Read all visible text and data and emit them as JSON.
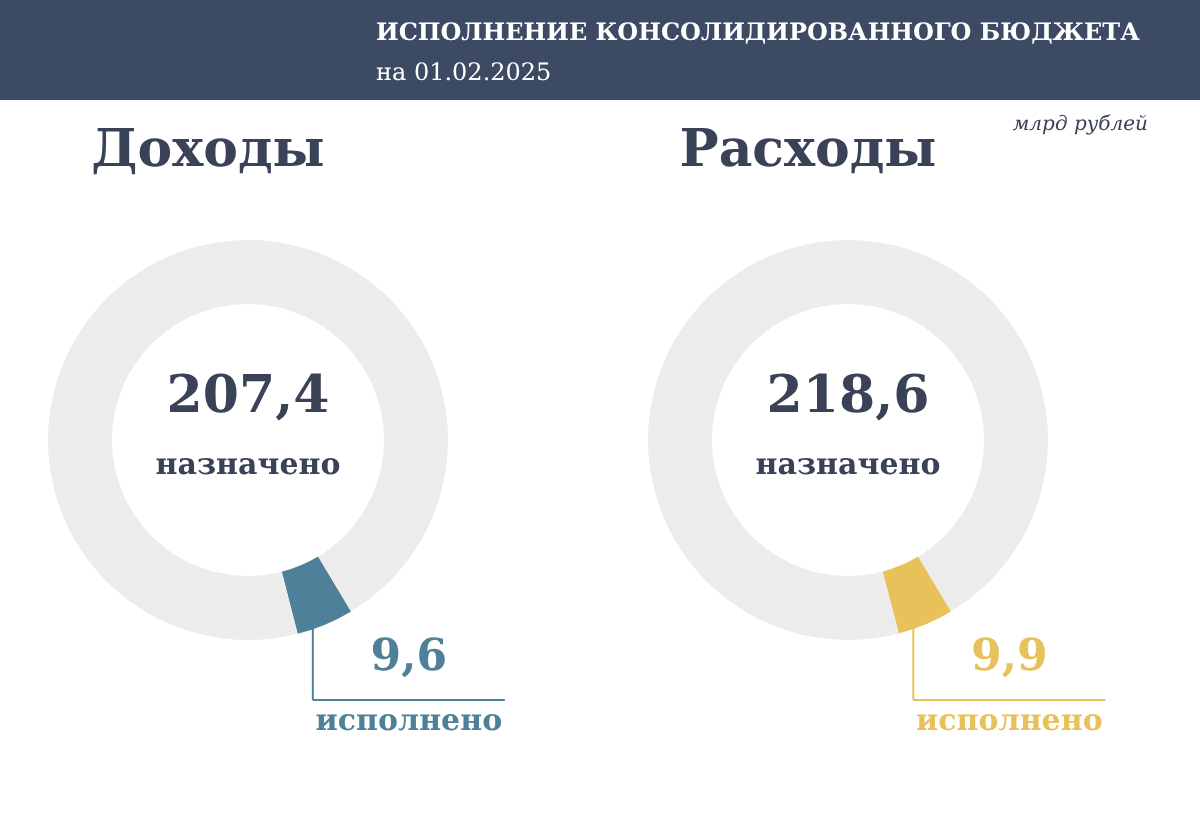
{
  "chart_data": [
    {
      "type": "other",
      "title": "ИСПОЛНЕНИЕ КОНСОЛИДИРОВАННОГО БЮДЖЕТА",
      "subtitle": "на 01.02.2025",
      "annotations": [
        "млрд рублей"
      ]
    },
    {
      "type": "donut",
      "title": "Доходы",
      "categories": [
        "исполнено",
        null
      ],
      "values": [
        9.6,
        197.8
      ],
      "colors": [
        "#4f8099",
        "#ececec"
      ],
      "value_labels": [
        "9,6",
        null
      ],
      "annotations": [
        "207,4",
        "назначено"
      ]
    },
    {
      "type": "donut",
      "title": "Расходы",
      "categories": [
        "исполнено",
        null
      ],
      "values": [
        9.9,
        208.7
      ],
      "colors": [
        "#e8c15a",
        "#ececec"
      ],
      "value_labels": [
        "9,9",
        null
      ],
      "annotations": [
        "218,6",
        "назначено"
      ]
    }
  ]
}
